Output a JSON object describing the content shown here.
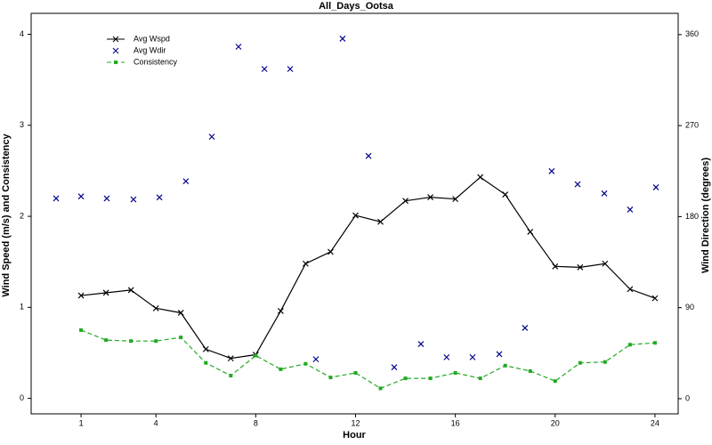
{
  "chart_data": {
    "type": "line",
    "title": "All_Days_Ootsa",
    "xlabel": "Hour",
    "ylabel": "Wind Speed (m/s) and Consistency",
    "y2label": "Wind Direction (degrees)",
    "x": [
      1,
      2,
      3,
      4,
      5,
      6,
      7,
      8,
      9,
      10,
      11,
      12,
      13,
      14,
      15,
      16,
      17,
      18,
      19,
      20,
      21,
      22,
      23,
      24
    ],
    "xlim": [
      -1,
      24.93
    ],
    "xticks": [
      1,
      4,
      8,
      12,
      16,
      20,
      24
    ],
    "ylim": [
      -0.17,
      4.23
    ],
    "yticks": [
      0,
      1,
      2,
      3,
      4
    ],
    "y2lim": [
      -15,
      381
    ],
    "y2ticks": [
      0,
      90,
      180,
      270,
      360
    ],
    "legend": "upper left",
    "series": [
      {
        "name": "Avg Wspd",
        "color": "#000000",
        "line": "solid",
        "marker": "x",
        "values": [
          1.13,
          1.16,
          1.19,
          0.99,
          0.94,
          0.54,
          0.44,
          0.48,
          0.96,
          1.48,
          1.61,
          2.01,
          1.94,
          2.17,
          2.21,
          2.19,
          2.43,
          2.24,
          1.83,
          1.45,
          1.44,
          1.48,
          1.2,
          1.1
        ]
      },
      {
        "name": "Avg Wdir",
        "color": "#00008b",
        "line": "none",
        "marker": "x",
        "axis": "y2",
        "x": [
          0,
          1.0,
          2.03,
          3.1,
          4.14,
          5.2,
          6.24,
          7.31,
          8.35,
          9.38,
          10.41,
          11.48,
          12.52,
          13.55,
          14.62,
          15.65,
          16.69,
          17.76,
          18.79,
          19.86,
          20.9,
          21.97,
          23.0,
          24.04
        ],
        "values": [
          198,
          200,
          198,
          197,
          199,
          215,
          259,
          348,
          326,
          326,
          39,
          356,
          240,
          31,
          54,
          41,
          41,
          44,
          70,
          225,
          212,
          203,
          187,
          209
        ]
      },
      {
        "name": "Consistency",
        "color": "#22aa22",
        "line": "dashed",
        "marker": "square",
        "values": [
          0.75,
          0.64,
          0.63,
          0.63,
          0.67,
          0.39,
          0.25,
          0.47,
          0.32,
          0.38,
          0.23,
          0.28,
          0.11,
          0.22,
          0.22,
          0.28,
          0.22,
          0.36,
          0.3,
          0.19,
          0.39,
          0.4,
          0.59,
          0.61
        ]
      }
    ]
  }
}
